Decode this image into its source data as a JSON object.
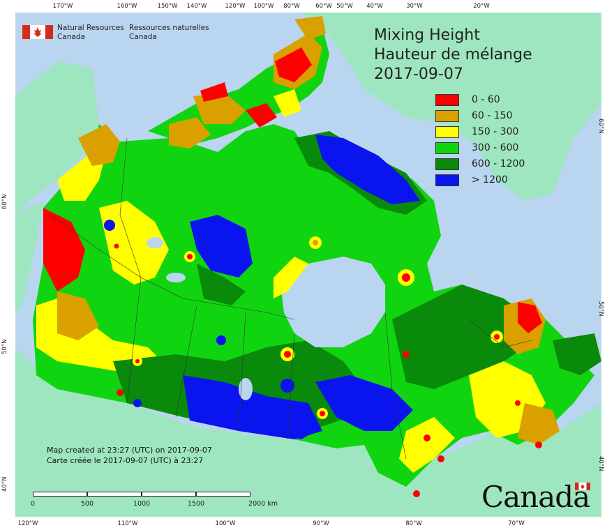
{
  "app": {
    "agency_en_line1": "Natural Resources",
    "agency_en_line2": "Canada",
    "agency_fr_line1": "Ressources naturelles",
    "agency_fr_line2": "Canada",
    "wordmark": "Canada"
  },
  "title": {
    "line1": "Mixing Height",
    "line2": "Hauteur de mélange",
    "date": "2017-09-07"
  },
  "legend": [
    {
      "label": "0 - 60",
      "color": "#ff0000"
    },
    {
      "label": "60 - 150",
      "color": "#d9a000"
    },
    {
      "label": "150 - 300",
      "color": "#ffff00"
    },
    {
      "label": "300 - 600",
      "color": "#11d411"
    },
    {
      "label": "600 - 1200",
      "color": "#0a8a0a"
    },
    {
      "label": "> 1200",
      "color": "#0a14ee"
    }
  ],
  "credit": {
    "en": "Map created at 23:27 (UTC) on 2017-09-07",
    "fr": "Carte créée le 2017-09-07 (UTC) à 23:27"
  },
  "scale_bar": {
    "labels": [
      "0",
      "500",
      "1000",
      "1500",
      "2000 km"
    ]
  },
  "graticule": {
    "top": [
      "170°W",
      "160°W",
      "150°W",
      "140°W",
      "120°W",
      "100°W",
      "80°W",
      "60°W",
      "50°W",
      "40°W",
      "30°W",
      "20°W"
    ],
    "bottom": [
      "120°W",
      "110°W",
      "100°W",
      "90°W",
      "80°W",
      "70°W"
    ],
    "left": [
      "60°N",
      "50°N",
      "40°N"
    ],
    "right": [
      "60°N",
      "50°N",
      "40°N"
    ]
  },
  "colors": {
    "ocean": "#b9d5ef",
    "foreign_land": "#9ee6bf",
    "lakes": "#b9d5ef"
  }
}
